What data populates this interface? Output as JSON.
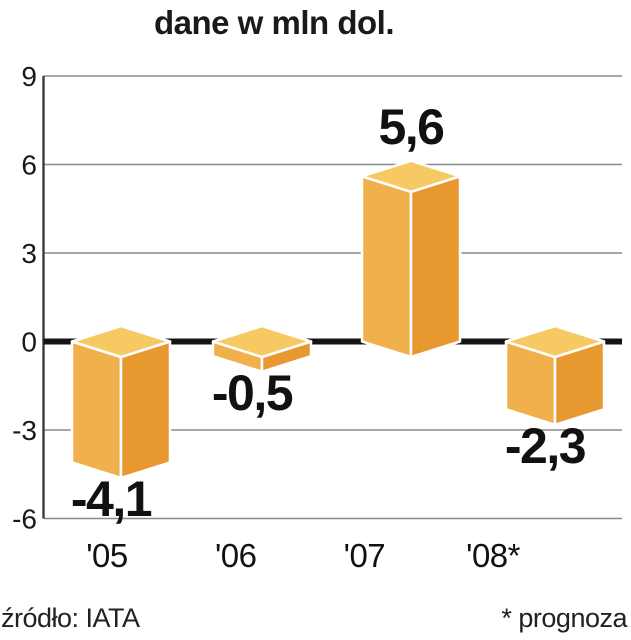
{
  "title": "dane w mln dol.",
  "footer": {
    "source": "źródło: IATA",
    "footnote": "* prognoza"
  },
  "chart_data": {
    "type": "bar",
    "title": "dane w mln dol.",
    "categories": [
      "'05",
      "'06",
      "'07",
      "'08*"
    ],
    "values": [
      -4.1,
      -0.5,
      5.6,
      -2.3
    ],
    "value_labels": [
      "-4,1",
      "-0,5",
      "5,6",
      "-2,3"
    ],
    "xlabel": "",
    "ylabel": "",
    "unit": "mln dol.",
    "ylim": [
      -6,
      9
    ],
    "yticks": [
      9,
      6,
      3,
      0,
      -3,
      -6
    ],
    "grid": true,
    "legend": "none",
    "bar_style": "3d-isometric",
    "source": "IATA",
    "note": "* prognoza (forecast)",
    "colors": {
      "bar_top": "#F6C963",
      "bar_left": "#F0B04B",
      "bar_right": "#E7982F",
      "bar_edge": "#FFFFFF",
      "gridline": "#8A8A8A",
      "axis_line": "#3A3A3A",
      "zero_line": "#141414",
      "text": "#1A1A1A"
    }
  }
}
